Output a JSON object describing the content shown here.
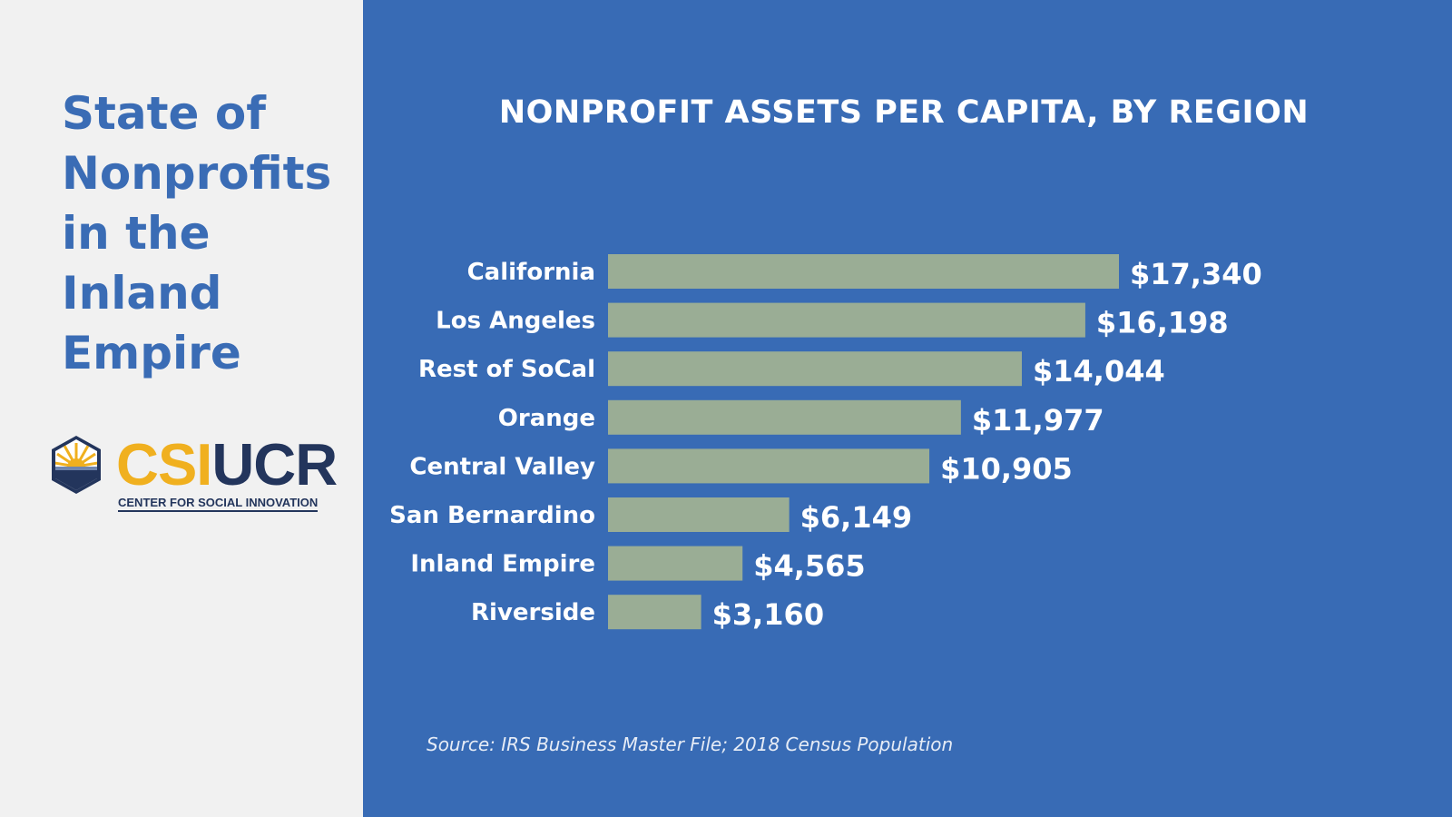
{
  "sidebar": {
    "title_lines": [
      "State of",
      "Nonprofits",
      "in the",
      "Inland",
      "Empire"
    ],
    "logo": {
      "text_csi": "CSI",
      "text_ucr": "UCR",
      "tagline": "CENTER FOR SOCIAL INNOVATION",
      "icon": "sunrise-hexagon-icon"
    }
  },
  "colors": {
    "sidebar_bg": "#f1f1f1",
    "title_color": "#3a6cb5",
    "panel_bg": "#386bb5",
    "bar_fill": "#9aad95",
    "logo_gold": "#f0b01f",
    "logo_navy": "#23355c"
  },
  "chart_data": {
    "type": "bar",
    "orientation": "horizontal",
    "title": "NONPROFIT ASSETS PER CAPITA, BY REGION",
    "categories": [
      "California",
      "Los Angeles",
      "Rest of SoCal",
      "Orange",
      "Central Valley",
      "San Bernardino",
      "Inland Empire",
      "Riverside"
    ],
    "values": [
      17340,
      16198,
      14044,
      11977,
      10905,
      6149,
      4565,
      3160
    ],
    "value_labels": [
      "$17,340",
      "$16,198",
      "$14,044",
      "$11,977",
      "$10,905",
      "$6,149",
      "$4,565",
      "$3,160"
    ],
    "xlabel": "",
    "ylabel": "",
    "xlim": [
      0,
      17340
    ],
    "grid": false,
    "legend": "none",
    "source": "Source: IRS Business Master File; 2018 Census Population"
  }
}
